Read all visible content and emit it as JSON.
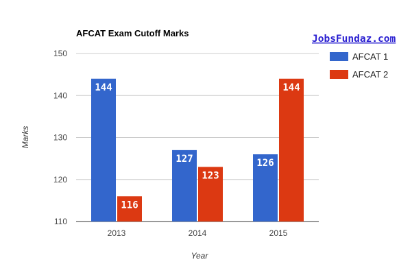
{
  "chart_data": {
    "type": "bar",
    "title": "AFCAT Exam Cutoff Marks",
    "watermark": "JobsFundaz.com",
    "xlabel": "Year",
    "ylabel": "Marks",
    "categories": [
      "2013",
      "2014",
      "2015"
    ],
    "series": [
      {
        "name": "AFCAT 1",
        "color": "#3366cc",
        "values": [
          144,
          127,
          126
        ]
      },
      {
        "name": "AFCAT 2",
        "color": "#dc3912",
        "values": [
          116,
          123,
          144
        ]
      }
    ],
    "ylim": [
      110,
      150
    ],
    "yticks": [
      110,
      120,
      130,
      140,
      150
    ],
    "grid": true,
    "legend": "right",
    "data_labels": true
  }
}
